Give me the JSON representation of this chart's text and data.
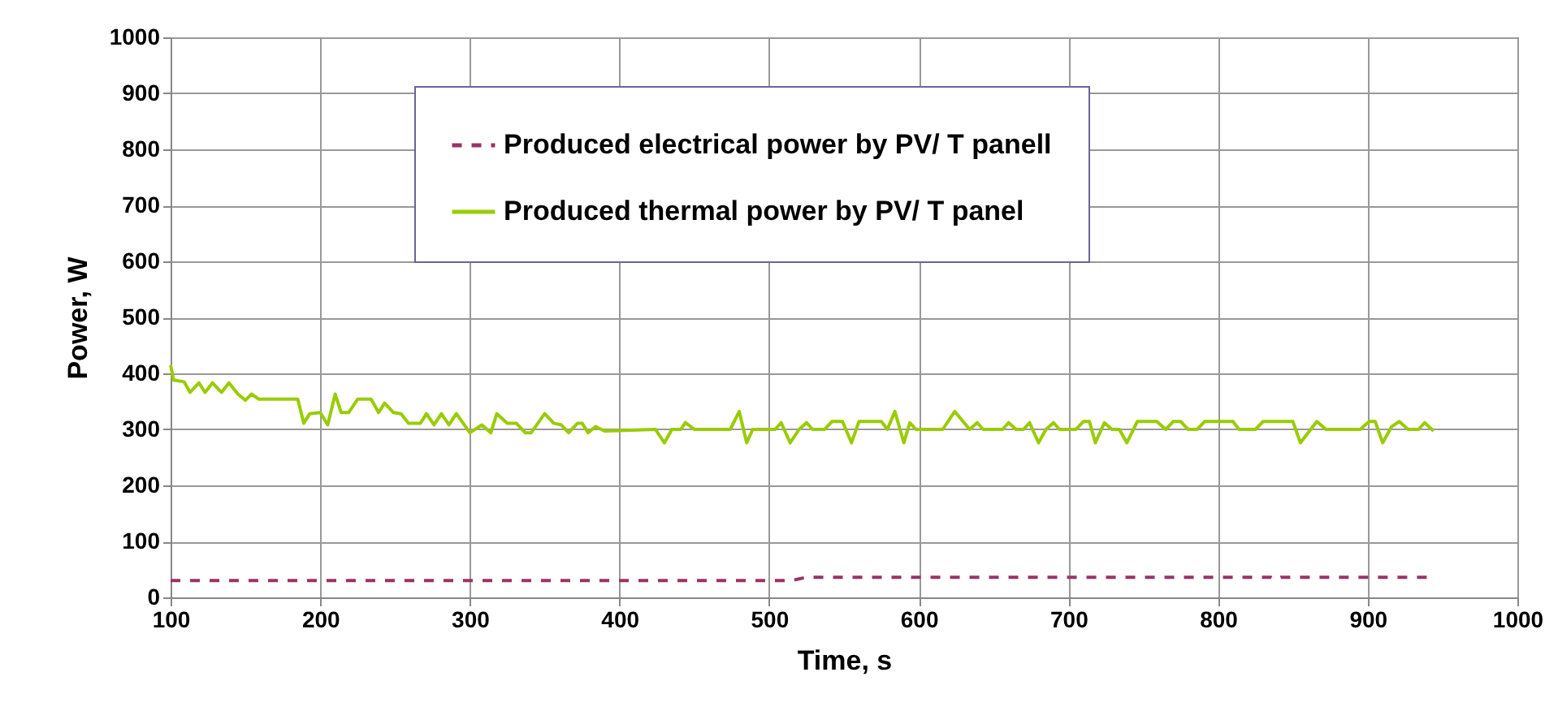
{
  "chart_data": {
    "type": "line",
    "xlabel": "Time, s",
    "ylabel": "Power, W",
    "xlim": [
      100,
      1000
    ],
    "xticks": [
      100,
      200,
      300,
      400,
      500,
      600,
      700,
      800,
      900,
      1000
    ],
    "ylim": [
      0,
      1000
    ],
    "yticks": [
      0,
      100,
      200,
      300,
      400,
      500,
      600,
      700,
      800,
      900,
      1000
    ],
    "grid": true,
    "legend": "top",
    "marker": "none",
    "series": [
      {
        "name": "Produced electrical power by PV/ T panell",
        "color": "#993366",
        "line_style": "dashed",
        "x": [
          100,
          515,
          525,
          835,
          838,
          842,
          940
        ],
        "values": [
          30,
          30,
          36,
          36,
          32,
          36,
          36
        ]
      },
      {
        "name": "Produced thermal power by PV/ T panel",
        "color": "#99cc00",
        "line_style": "solid",
        "x": [
          100,
          102,
          109,
          113,
          119,
          123,
          128,
          134,
          139,
          145,
          150,
          154,
          159,
          185,
          189,
          193,
          200,
          205,
          210,
          214,
          219,
          225,
          234,
          239,
          243,
          249,
          254,
          259,
          267,
          271,
          276,
          281,
          286,
          291,
          300,
          308,
          314,
          318,
          325,
          331,
          337,
          341,
          350,
          356,
          361,
          366,
          372,
          375,
          379,
          384,
          390,
          424,
          430,
          435,
          441,
          444,
          450,
          474,
          480,
          485,
          489,
          504,
          508,
          514,
          520,
          525,
          529,
          537,
          542,
          549,
          555,
          560,
          575,
          579,
          584,
          590,
          594,
          598,
          616,
          624,
          634,
          639,
          643,
          656,
          660,
          665,
          670,
          674,
          680,
          685,
          690,
          694,
          705,
          710,
          714,
          718,
          724,
          729,
          734,
          739,
          746,
          759,
          765,
          770,
          775,
          780,
          786,
          791,
          810,
          814,
          825,
          830,
          850,
          855,
          866,
          872,
          895,
          901,
          905,
          910,
          916,
          921,
          927,
          934,
          938,
          944
        ],
        "values": [
          415,
          388,
          385,
          366,
          383,
          366,
          383,
          366,
          383,
          363,
          352,
          363,
          354,
          354,
          311,
          328,
          330,
          308,
          363,
          330,
          330,
          354,
          354,
          330,
          347,
          330,
          328,
          311,
          311,
          328,
          308,
          328,
          308,
          328,
          294,
          308,
          294,
          328,
          311,
          311,
          294,
          294,
          328,
          311,
          308,
          294,
          311,
          311,
          294,
          305,
          297,
          300,
          276,
          300,
          300,
          312,
          300,
          300,
          332,
          276,
          300,
          300,
          312,
          276,
          300,
          312,
          300,
          300,
          314,
          314,
          276,
          314,
          314,
          300,
          332,
          276,
          312,
          300,
          300,
          332,
          300,
          312,
          300,
          300,
          312,
          300,
          300,
          312,
          276,
          300,
          312,
          300,
          300,
          314,
          314,
          276,
          312,
          300,
          300,
          276,
          314,
          314,
          300,
          314,
          314,
          300,
          300,
          314,
          314,
          300,
          300,
          314,
          314,
          276,
          314,
          300,
          300,
          314,
          314,
          276,
          305,
          314,
          300,
          300,
          312,
          297
        ]
      }
    ]
  }
}
